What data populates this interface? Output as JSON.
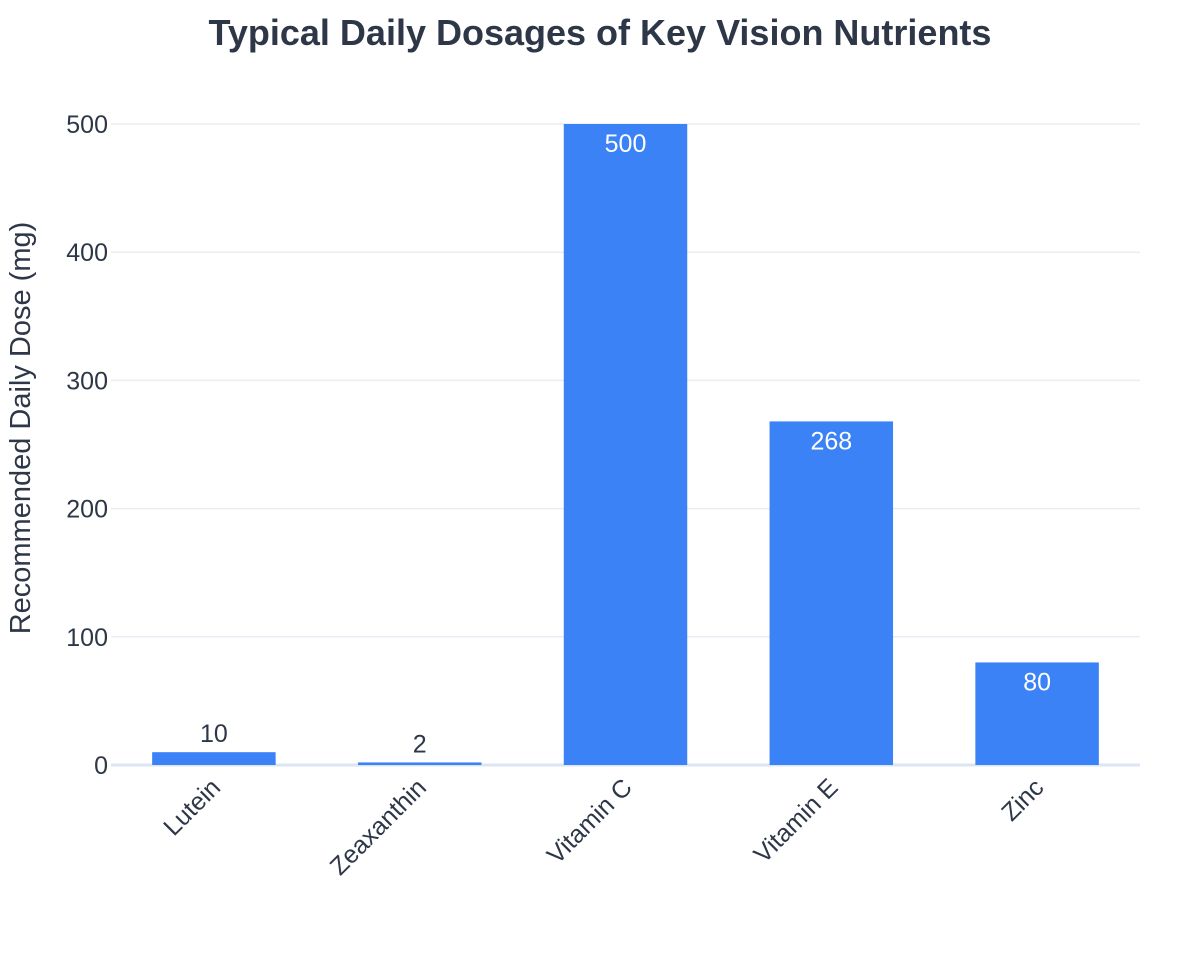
{
  "chart_data": {
    "type": "bar",
    "title": "Typical Daily Dosages of Key Vision Nutrients",
    "xlabel": "",
    "ylabel": "Recommended Daily Dose (mg)",
    "categories": [
      "Lutein",
      "Zeaxanthin",
      "Vitamin C",
      "Vitamin E",
      "Zinc"
    ],
    "values": [
      10,
      2,
      500,
      268,
      80
    ],
    "value_labels": [
      "10",
      "2",
      "500",
      "268",
      "80"
    ],
    "ylim": [
      0,
      500
    ],
    "yticks": [
      0,
      100,
      200,
      300,
      400,
      500
    ],
    "ytick_labels": [
      "0",
      "100",
      "200",
      "300",
      "400",
      "500"
    ],
    "grid": true,
    "legend": "none",
    "colors": {
      "bar": "#3b82f6",
      "grid": "#e8edf3",
      "zero_line": "#dbe6f3",
      "text": "#2d3748",
      "label_inside": "#ffffff"
    }
  }
}
